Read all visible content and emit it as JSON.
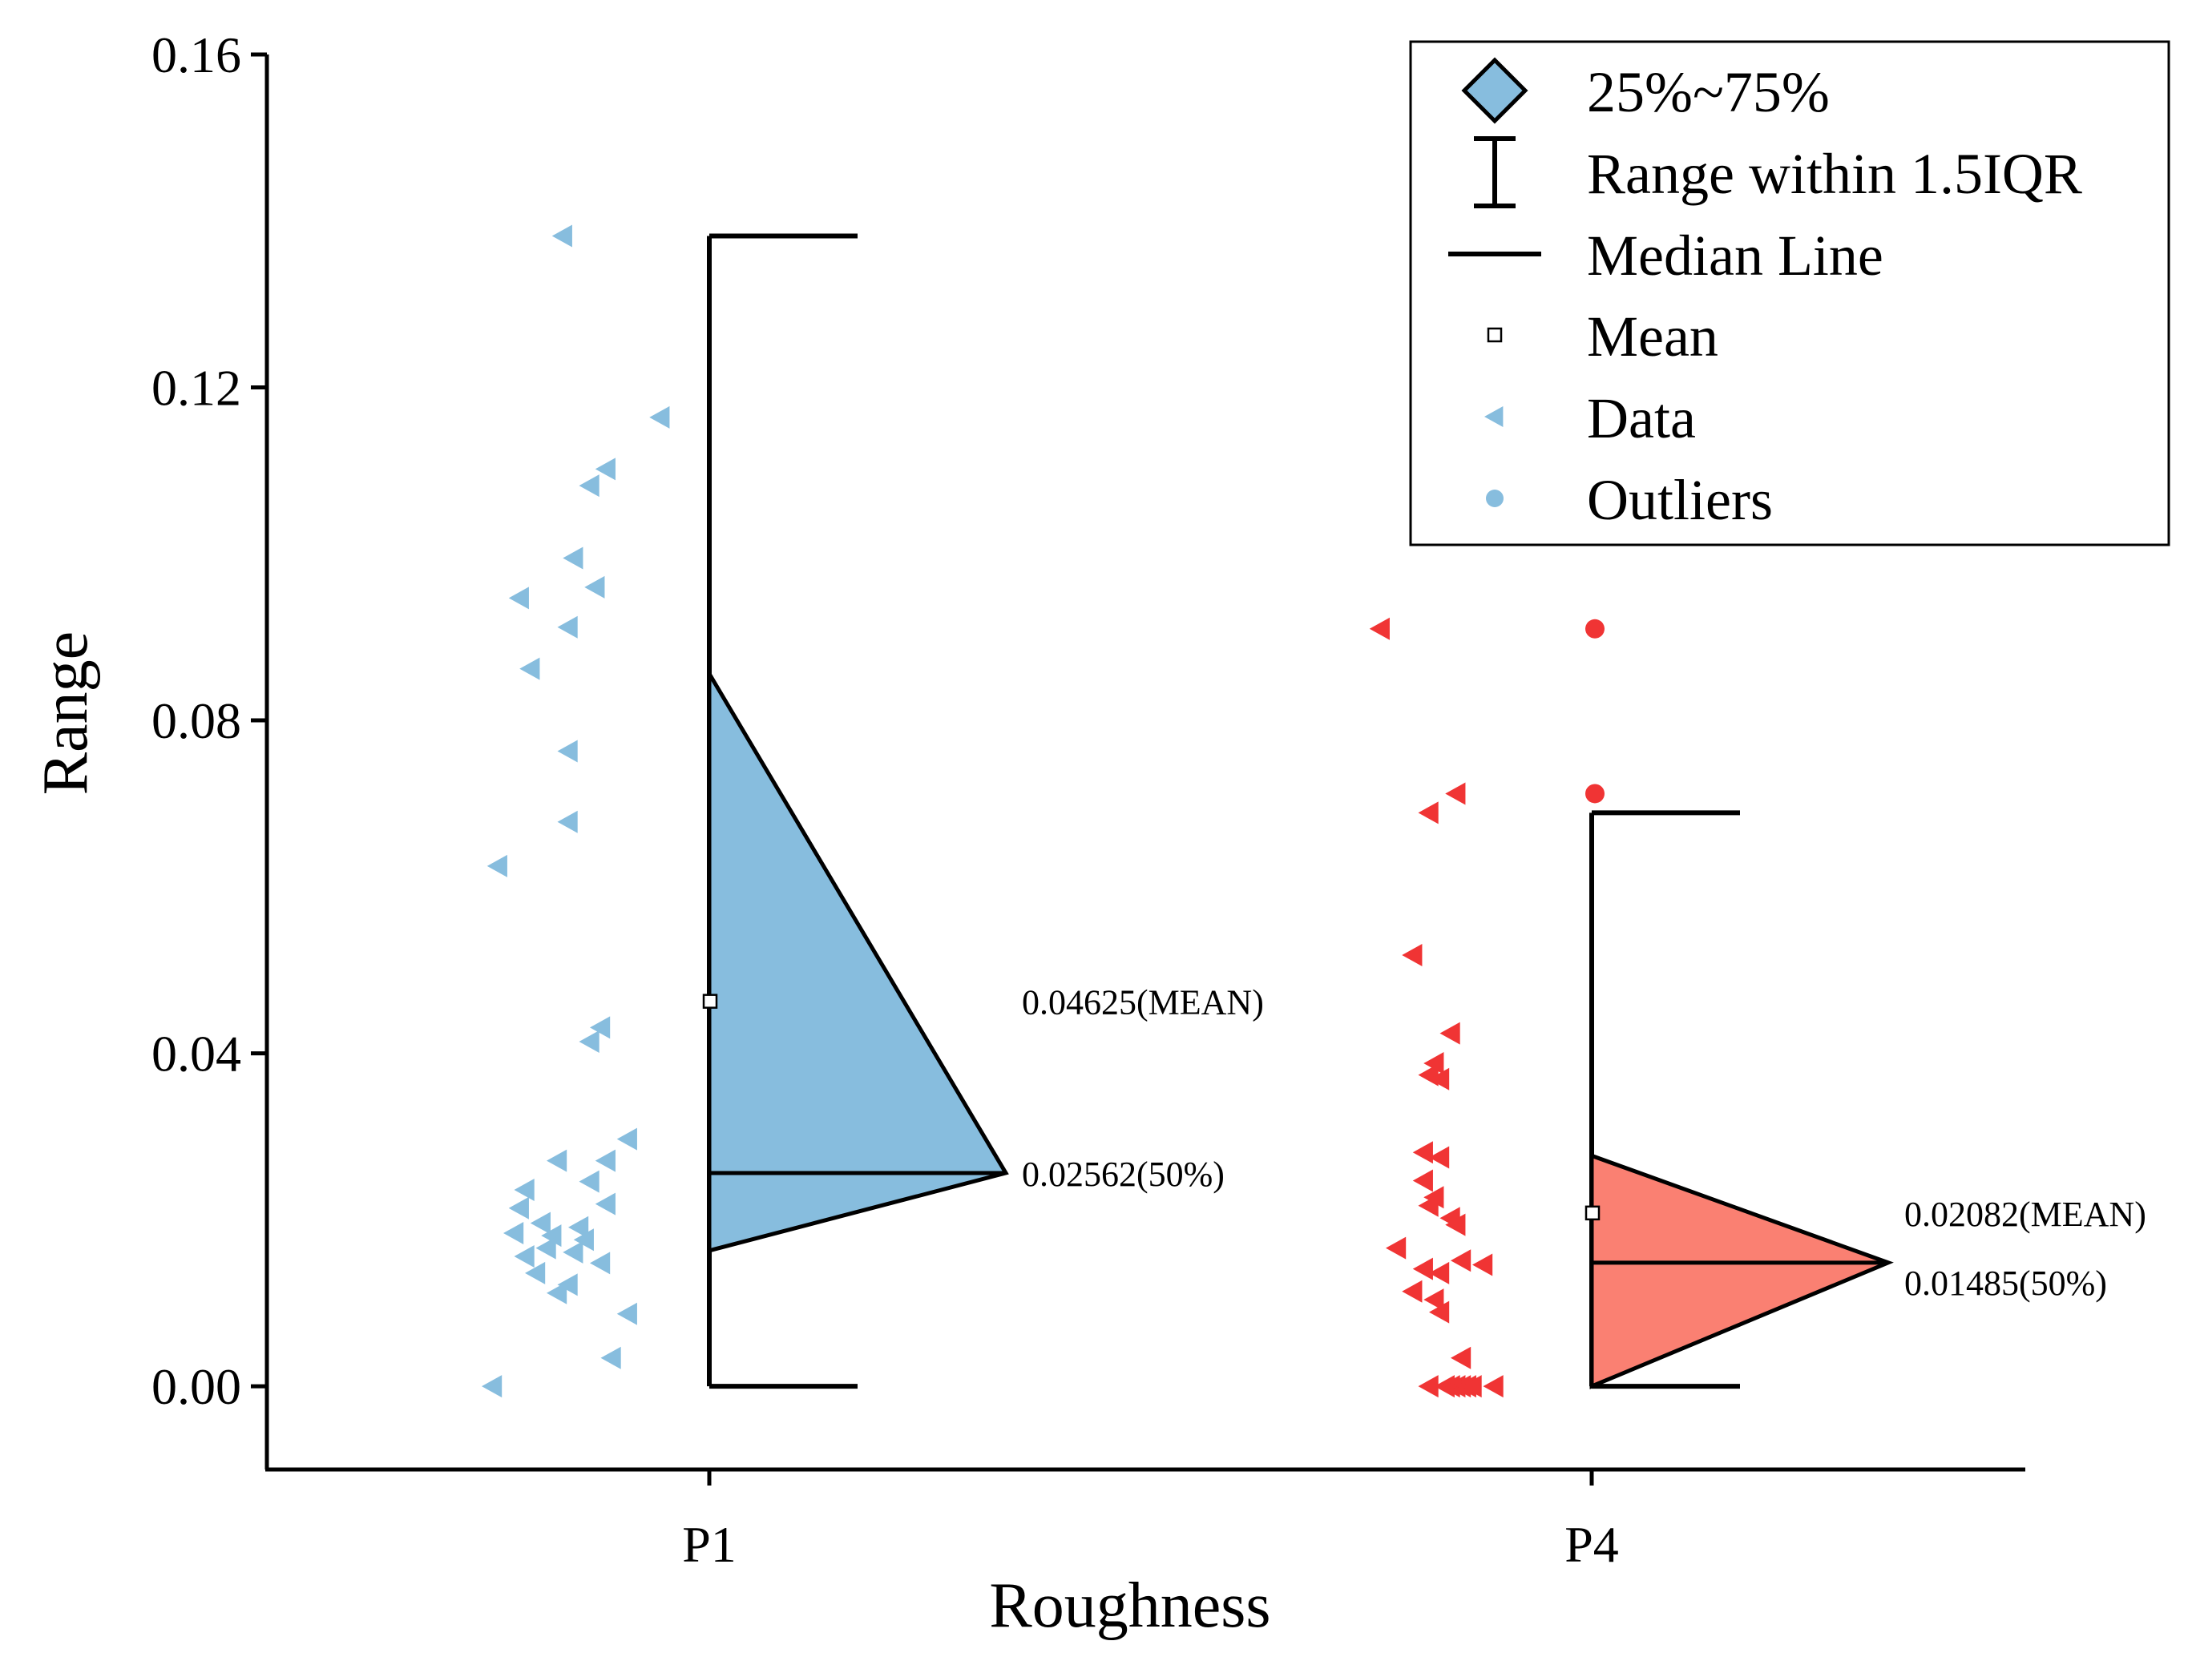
{
  "chart_data": {
    "type": "half-box-scatter",
    "xlabel": "Roughness",
    "ylabel": "Range",
    "ylim": [
      -0.01,
      0.16
    ],
    "yticks": [
      0.0,
      0.04,
      0.08,
      0.12,
      0.16
    ],
    "ytick_labels": [
      "0.00",
      "0.04",
      "0.08",
      "0.12",
      "0.16"
    ],
    "categories": [
      "P1",
      "P4"
    ],
    "groups": [
      {
        "name": "P1",
        "color": "#87BDDE",
        "box_fill": "#87BDDE",
        "q1": 0.0163,
        "q3": 0.0856,
        "median": 0.02562,
        "mean": 0.04625,
        "whisker_low": 0.0,
        "whisker_high": 0.1382,
        "mean_label": "0.04625(MEAN)",
        "median_label": "0.02562(50%)",
        "data": [
          {
            "v": 0.1382,
            "j": 0.27
          },
          {
            "v": 0.1164,
            "j": 0.09
          },
          {
            "v": 0.1102,
            "j": 0.19
          },
          {
            "v": 0.1082,
            "j": 0.22
          },
          {
            "v": 0.0995,
            "j": 0.25
          },
          {
            "v": 0.096,
            "j": 0.21
          },
          {
            "v": 0.0947,
            "j": 0.35
          },
          {
            "v": 0.0912,
            "j": 0.26
          },
          {
            "v": 0.0862,
            "j": 0.33
          },
          {
            "v": 0.0763,
            "j": 0.26
          },
          {
            "v": 0.0678,
            "j": 0.26
          },
          {
            "v": 0.0625,
            "j": 0.39
          },
          {
            "v": 0.0431,
            "j": 0.2
          },
          {
            "v": 0.0414,
            "j": 0.22
          },
          {
            "v": 0.0297,
            "j": 0.15
          },
          {
            "v": 0.0271,
            "j": 0.19
          },
          {
            "v": 0.0271,
            "j": 0.28
          },
          {
            "v": 0.0246,
            "j": 0.22
          },
          {
            "v": 0.0236,
            "j": 0.34
          },
          {
            "v": 0.0219,
            "j": 0.19
          },
          {
            "v": 0.0214,
            "j": 0.35
          },
          {
            "v": 0.0196,
            "j": 0.31
          },
          {
            "v": 0.0191,
            "j": 0.24
          },
          {
            "v": 0.0184,
            "j": 0.36
          },
          {
            "v": 0.0181,
            "j": 0.29
          },
          {
            "v": 0.0176,
            "j": 0.23
          },
          {
            "v": 0.0166,
            "j": 0.3
          },
          {
            "v": 0.0161,
            "j": 0.25
          },
          {
            "v": 0.0156,
            "j": 0.34
          },
          {
            "v": 0.0148,
            "j": 0.2
          },
          {
            "v": 0.0136,
            "j": 0.32
          },
          {
            "v": 0.0122,
            "j": 0.26
          },
          {
            "v": 0.0112,
            "j": 0.28
          },
          {
            "v": 0.0087,
            "j": 0.15
          },
          {
            "v": 0.0034,
            "j": 0.18
          },
          {
            "v": 0.0,
            "j": 0.4
          }
        ],
        "outliers": []
      },
      {
        "name": "P4",
        "color": "#F03434",
        "box_fill": "#FA8072",
        "q1": 0.0,
        "q3": 0.0277,
        "median": 0.01485,
        "mean": 0.02082,
        "whisker_low": 0.0,
        "whisker_high": 0.0689,
        "mean_label": "0.02082(MEAN)",
        "median_label": "0.01485(50%)",
        "data": [
          {
            "v": 0.091,
            "j": 0.39
          },
          {
            "v": 0.0712,
            "j": 0.25
          },
          {
            "v": 0.0689,
            "j": 0.3
          },
          {
            "v": 0.0518,
            "j": 0.33
          },
          {
            "v": 0.0424,
            "j": 0.26
          },
          {
            "v": 0.0388,
            "j": 0.29
          },
          {
            "v": 0.0374,
            "j": 0.3
          },
          {
            "v": 0.0369,
            "j": 0.28
          },
          {
            "v": 0.0281,
            "j": 0.31
          },
          {
            "v": 0.0275,
            "j": 0.28
          },
          {
            "v": 0.0247,
            "j": 0.31
          },
          {
            "v": 0.0227,
            "j": 0.29
          },
          {
            "v": 0.0217,
            "j": 0.3
          },
          {
            "v": 0.0202,
            "j": 0.26
          },
          {
            "v": 0.0194,
            "j": 0.25
          },
          {
            "v": 0.0166,
            "j": 0.36
          },
          {
            "v": 0.0151,
            "j": 0.24
          },
          {
            "v": 0.0146,
            "j": 0.2
          },
          {
            "v": 0.0141,
            "j": 0.31
          },
          {
            "v": 0.0136,
            "j": 0.28
          },
          {
            "v": 0.0114,
            "j": 0.33
          },
          {
            "v": 0.0104,
            "j": 0.29
          },
          {
            "v": 0.0089,
            "j": 0.28
          },
          {
            "v": 0.0034,
            "j": 0.24
          },
          {
            "v": 0.0,
            "j": 0.3
          },
          {
            "v": 0.0,
            "j": 0.27
          },
          {
            "v": 0.0,
            "j": 0.26
          },
          {
            "v": 0.0,
            "j": 0.25
          },
          {
            "v": 0.0,
            "j": 0.24
          },
          {
            "v": 0.0,
            "j": 0.23
          },
          {
            "v": 0.0,
            "j": 0.22
          },
          {
            "v": 0.0,
            "j": 0.18
          }
        ],
        "outliers": [
          0.091,
          0.0712
        ]
      }
    ],
    "legend": {
      "placement": "top-right",
      "items": [
        {
          "symbol": "box",
          "label": "25%~75%"
        },
        {
          "symbol": "whisker",
          "label": "Range within 1.5IQR"
        },
        {
          "symbol": "median",
          "label": "Median Line"
        },
        {
          "symbol": "mean",
          "label": "Mean"
        },
        {
          "symbol": "data",
          "label": "Data"
        },
        {
          "symbol": "outlier",
          "label": "Outliers"
        }
      ]
    },
    "grid": false
  }
}
